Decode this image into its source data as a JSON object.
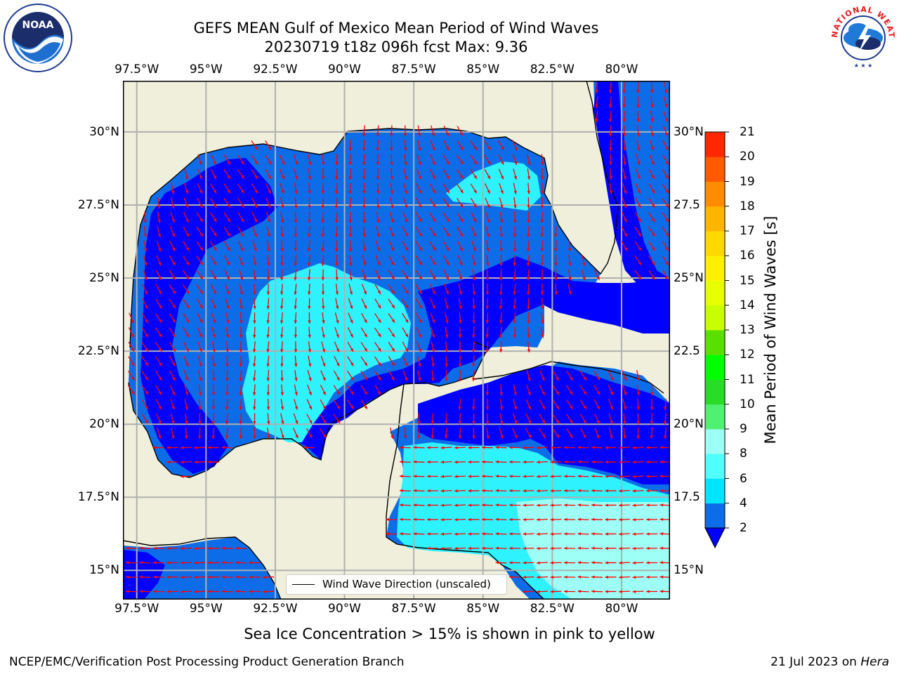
{
  "title": {
    "line1": "GEFS MEAN Gulf of Mexico Mean Period of Wind Waves",
    "line2": "20230719 t18z 096h fcst   Max: 9.36"
  },
  "map": {
    "lon_labels": [
      "97.5°W",
      "95°W",
      "92.5°W",
      "90°W",
      "87.5°W",
      "85°W",
      "82.5°W",
      "80°W"
    ],
    "lon_values": [
      -97.5,
      -95,
      -92.5,
      -90,
      -87.5,
      -85,
      -82.5,
      -80
    ],
    "lat_labels_left": [
      "30°N",
      "27.5°N",
      "25°N",
      "22.5°N",
      "20°N",
      "17.5°N",
      "15°N"
    ],
    "lat_labels_right": [
      "30°N",
      "27.5",
      "25°N",
      "22.5",
      "20°N",
      "17.5",
      "15°N"
    ],
    "lat_values": [
      30,
      27.5,
      25,
      22.5,
      20,
      17.5,
      15
    ],
    "extent": {
      "lon_min": -98,
      "lon_max": -78.25,
      "lat_min": 14,
      "lat_max": 31.75
    },
    "land_color": "#efefdc",
    "arrow_color": "#ff0000",
    "legend_label": "Wind Wave Direction (unscaled)"
  },
  "colorbar": {
    "label": "Mean Period of Wind Waves [s]",
    "ticks": [
      "2",
      "4",
      "6",
      "8",
      "9",
      "10",
      "11",
      "12",
      "13",
      "14",
      "15",
      "16",
      "17",
      "18",
      "19",
      "20",
      "21"
    ],
    "colors": [
      "#0d6de8",
      "#00e5ff",
      "#50ffff",
      "#9dfff5",
      "#50f070",
      "#28dc28",
      "#00ff00",
      "#5ae000",
      "#c8ff00",
      "#e8ff00",
      "#fff000",
      "#ffd800",
      "#ffb400",
      "#ff8c00",
      "#ff5a00",
      "#ff2800"
    ],
    "under_color": "#0000ff"
  },
  "ice_note": "Sea Ice Concentration > 15% is shown in pink to yellow",
  "footer": {
    "left": "NCEP/EMC/Verification Post Processing Product Generation Branch",
    "date": "21 Jul 2023 on ",
    "host": "Hera"
  },
  "logos": {
    "noaa_text": "NOAA",
    "nws_text": "NATIONAL WEATHER SERVICE"
  }
}
